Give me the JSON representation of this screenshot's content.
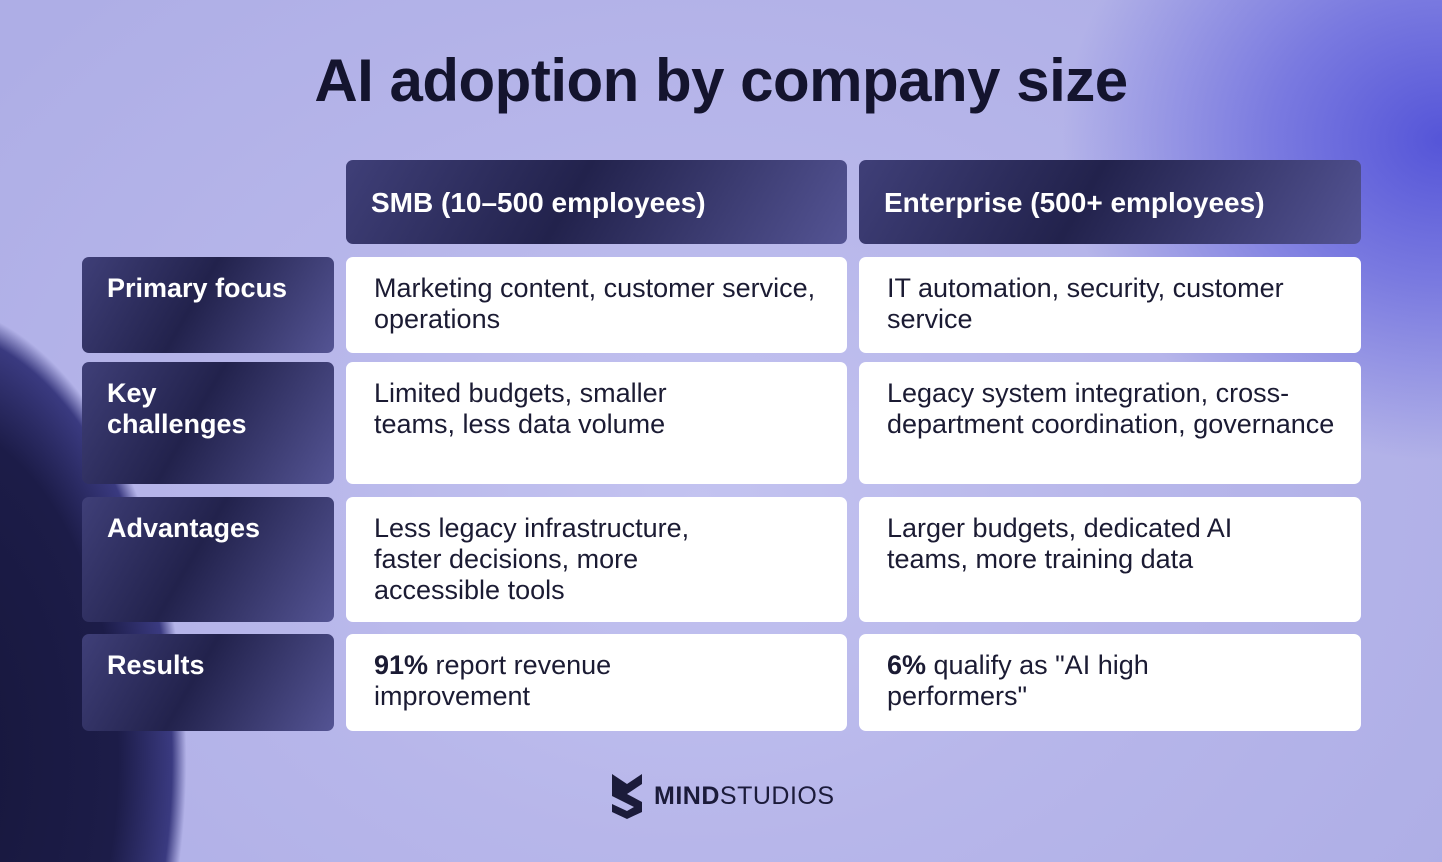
{
  "title": "AI adoption by company size",
  "columns": [
    "SMB (10–500 employees)",
    "Enterprise (500+ employees)"
  ],
  "rows": [
    {
      "label": "Primary focus",
      "smb": "Marketing content, customer service, operations",
      "enterprise": "IT automation, security, customer service"
    },
    {
      "label": "Key challenges",
      "smb": "Limited budgets, smaller teams, less data volume",
      "enterprise": "Legacy system integration, cross-department coordination, governance"
    },
    {
      "label": "Advantages",
      "smb": "Less legacy infrastructure, faster decisions, more accessible tools",
      "enterprise": "Larger budgets, dedicated AI teams, more training data"
    }
  ],
  "results": {
    "label": "Results",
    "smb_bold": "91%",
    "smb_rest": " report revenue improvement",
    "ent_bold": "6%",
    "ent_rest": " qualify as \"AI high performers\""
  },
  "logo": {
    "bold": "MIND",
    "light": "STUDIOS"
  }
}
